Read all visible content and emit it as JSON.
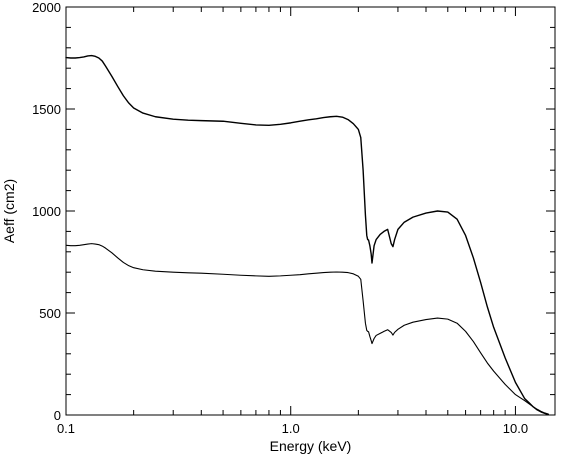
{
  "chart_data": {
    "type": "line",
    "title": "",
    "xlabel": "Energy (keV)",
    "ylabel": "Aeff (cm2)",
    "xscale": "log",
    "xlim": [
      0.1,
      15
    ],
    "ylim": [
      0,
      2000
    ],
    "grid": false,
    "legend": "none",
    "x_ticks": [
      {
        "value": 0.1,
        "label": "0.1"
      },
      {
        "value": 1.0,
        "label": "1.0"
      },
      {
        "value": 10.0,
        "label": "10.0"
      }
    ],
    "y_ticks": [
      {
        "value": 0,
        "label": "0"
      },
      {
        "value": 500,
        "label": "500"
      },
      {
        "value": 1000,
        "label": "1000"
      },
      {
        "value": 1500,
        "label": "1500"
      },
      {
        "value": 2000,
        "label": "2000"
      }
    ],
    "series": [
      {
        "color": "#000000",
        "x": [
          0.1,
          0.105,
          0.11,
          0.115,
          0.12,
          0.125,
          0.13,
          0.135,
          0.14,
          0.145,
          0.15,
          0.16,
          0.17,
          0.18,
          0.19,
          0.2,
          0.22,
          0.25,
          0.3,
          0.35,
          0.4,
          0.5,
          0.6,
          0.7,
          0.8,
          0.9,
          1.0,
          1.1,
          1.2,
          1.3,
          1.4,
          1.5,
          1.6,
          1.7,
          1.8,
          1.9,
          2.0,
          2.05,
          2.1,
          2.15,
          2.18,
          2.2,
          2.22,
          2.25,
          2.28,
          2.3,
          2.35,
          2.4,
          2.5,
          2.6,
          2.7,
          2.8,
          2.85,
          2.9,
          3.0,
          3.2,
          3.5,
          4.0,
          4.5,
          5.0,
          5.5,
          6.0,
          6.5,
          7.0,
          7.5,
          8.0,
          9.0,
          10.0,
          11.0,
          11.5,
          12.0,
          12.5,
          13.0,
          13.5,
          14.0
        ],
        "y": [
          1752,
          1750,
          1750,
          1752,
          1755,
          1760,
          1762,
          1758,
          1750,
          1735,
          1710,
          1660,
          1610,
          1565,
          1530,
          1505,
          1480,
          1462,
          1450,
          1445,
          1443,
          1440,
          1430,
          1422,
          1420,
          1425,
          1432,
          1440,
          1447,
          1452,
          1458,
          1462,
          1464,
          1460,
          1448,
          1428,
          1400,
          1360,
          1200,
          980,
          880,
          860,
          858,
          830,
          790,
          745,
          830,
          860,
          885,
          900,
          910,
          840,
          825,
          860,
          910,
          945,
          970,
          990,
          1000,
          995,
          960,
          880,
          770,
          650,
          530,
          430,
          280,
          160,
          80,
          60,
          40,
          25,
          15,
          8,
          3
        ]
      },
      {
        "color": "#000000",
        "x": [
          0.1,
          0.105,
          0.11,
          0.115,
          0.12,
          0.125,
          0.13,
          0.135,
          0.14,
          0.145,
          0.15,
          0.16,
          0.17,
          0.18,
          0.19,
          0.2,
          0.22,
          0.25,
          0.3,
          0.35,
          0.4,
          0.5,
          0.6,
          0.7,
          0.8,
          0.9,
          1.0,
          1.1,
          1.2,
          1.3,
          1.4,
          1.5,
          1.6,
          1.7,
          1.8,
          1.9,
          2.0,
          2.05,
          2.1,
          2.15,
          2.18,
          2.2,
          2.22,
          2.25,
          2.28,
          2.3,
          2.35,
          2.4,
          2.5,
          2.6,
          2.7,
          2.8,
          2.85,
          2.9,
          3.0,
          3.2,
          3.5,
          4.0,
          4.5,
          5.0,
          5.5,
          6.0,
          6.5,
          7.0,
          7.5,
          8.0,
          9.0,
          10.0,
          11.0,
          11.5,
          12.0,
          12.5,
          13.0,
          13.5,
          14.0
        ],
        "y": [
          832,
          830,
          830,
          832,
          835,
          838,
          840,
          838,
          835,
          828,
          818,
          795,
          770,
          748,
          732,
          722,
          712,
          705,
          700,
          697,
          695,
          690,
          685,
          682,
          680,
          682,
          685,
          688,
          692,
          695,
          698,
          700,
          701,
          700,
          698,
          692,
          680,
          665,
          560,
          450,
          415,
          410,
          408,
          385,
          365,
          350,
          375,
          390,
          400,
          410,
          418,
          405,
          392,
          405,
          420,
          440,
          455,
          468,
          475,
          470,
          450,
          410,
          360,
          305,
          255,
          215,
          150,
          100,
          70,
          55,
          40,
          28,
          18,
          10,
          5
        ]
      }
    ]
  }
}
